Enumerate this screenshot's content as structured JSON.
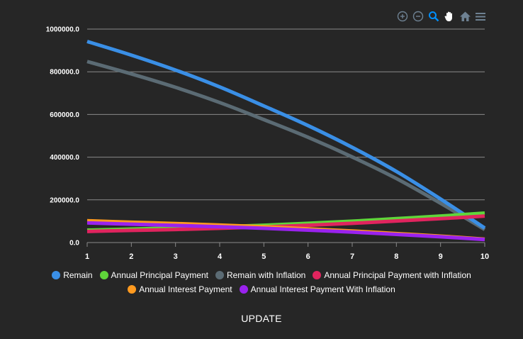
{
  "toolbar": {
    "icons": [
      "zoom-in-icon",
      "zoom-out-icon",
      "zoom-selection-icon",
      "pan-hand-icon",
      "reset-home-icon",
      "menu-icon"
    ],
    "colors": {
      "default": "#6e8192",
      "active": "#008ffb"
    }
  },
  "update_button": {
    "label": "UPDATE"
  },
  "chart_data": {
    "type": "line",
    "x": [
      1,
      2,
      3,
      4,
      5,
      6,
      7,
      8,
      9,
      10
    ],
    "xlim": [
      1,
      10
    ],
    "ylim": [
      0,
      1000000
    ],
    "y_ticks": [
      "0.0",
      "200000.0",
      "400000.0",
      "600000.0",
      "800000.0",
      "1000000.0"
    ],
    "x_ticks": [
      "1",
      "2",
      "3",
      "4",
      "5",
      "6",
      "7",
      "8",
      "9",
      "10"
    ],
    "grid": true,
    "legend_position": "bottom",
    "series": [
      {
        "name": "Remain",
        "color": "#3a8fe6",
        "values": [
          942000,
          878000,
          808000,
          729000,
          640000,
          548000,
          446000,
          333000,
          204000,
          68000
        ]
      },
      {
        "name": "Annual Principal Payment",
        "color": "#5fd63a",
        "values": [
          58000,
          63000,
          68000,
          74000,
          81000,
          90000,
          100000,
          112000,
          124000,
          138000
        ]
      },
      {
        "name": "Remain with Inflation",
        "color": "#5b6b74",
        "values": [
          848000,
          790000,
          727000,
          656000,
          576000,
          493000,
          401000,
          300000,
          184000,
          61000
        ]
      },
      {
        "name": "Annual Principal Payment with Inflation",
        "color": "#e0245e",
        "values": [
          52000,
          57000,
          61000,
          67000,
          73000,
          81000,
          90000,
          101000,
          112000,
          124000
        ]
      },
      {
        "name": "Annual Interest Payment",
        "color": "#ff9a1f",
        "values": [
          102000,
          95000,
          89000,
          82000,
          74000,
          64000,
          54000,
          42000,
          30000,
          16000
        ]
      },
      {
        "name": "Annual Interest Payment With Inflation",
        "color": "#9a22ee",
        "values": [
          92000,
          86000,
          80000,
          74000,
          67000,
          58000,
          49000,
          38000,
          27000,
          14000
        ]
      }
    ]
  }
}
